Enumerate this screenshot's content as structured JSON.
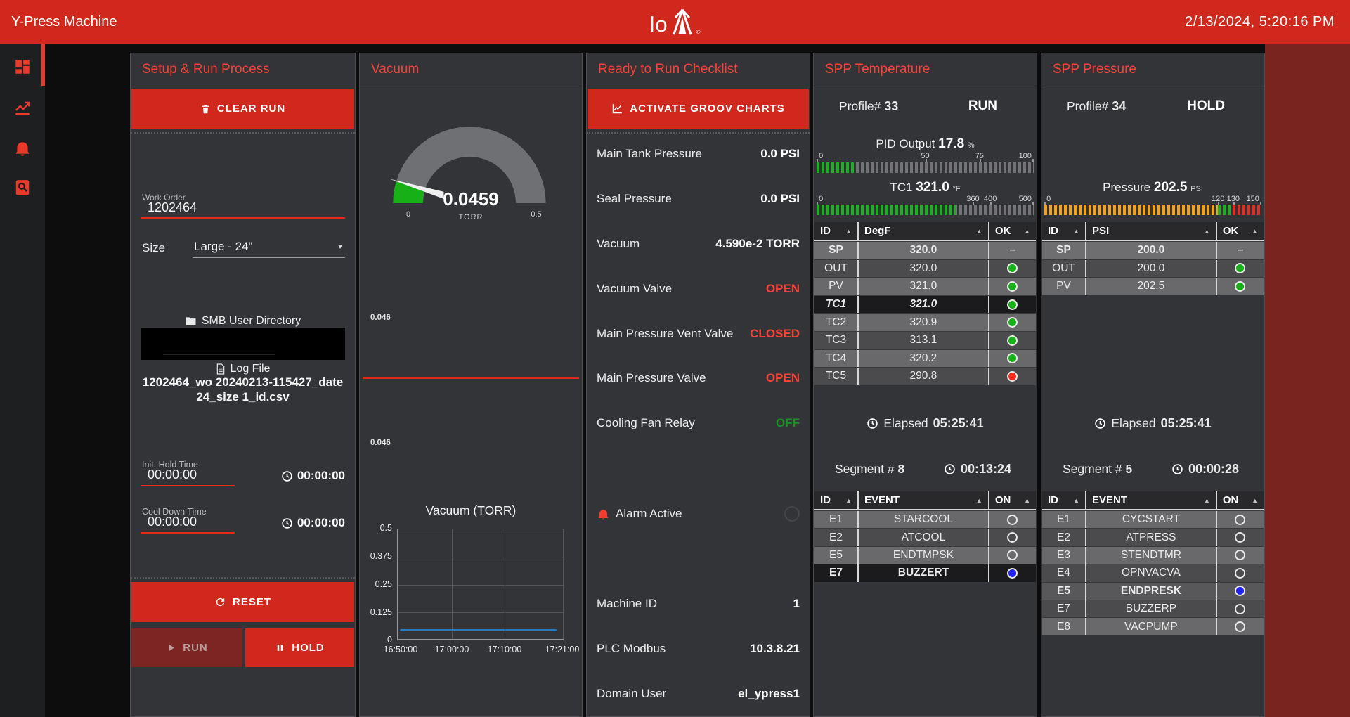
{
  "header": {
    "app_title": "Y-Press Machine",
    "logo_text": "lo",
    "logo_registered": "®",
    "datetime": "2/13/2024, 5:20:16 PM"
  },
  "sidebar": {
    "items": [
      "dashboard",
      "trends",
      "alarms",
      "log-search"
    ]
  },
  "setup": {
    "title": "Setup & Run Process",
    "clear_run_label": "CLEAR RUN",
    "work_order": {
      "label": "Work Order",
      "value": "1202464"
    },
    "size": {
      "label": "Size",
      "value": "Large - 24\""
    },
    "smb_label": "SMB User Directory",
    "log_file_label": "Log File",
    "log_file_name": "1202464_wo 20240213-115427_date 24_size 1_id.csv",
    "init_hold": {
      "label": "Init. Hold Time",
      "value": "00:00:00",
      "timer": "00:00:00"
    },
    "cool_down": {
      "label": "Cool Down Time",
      "value": "00:00:00",
      "timer": "00:00:00"
    },
    "reset_label": "RESET",
    "run_label": "RUN",
    "hold_label": "HOLD"
  },
  "vacuum": {
    "title": "Vacuum",
    "gauge": {
      "value": "0.0459",
      "unit": "TORR",
      "min": "0",
      "max": "0.5"
    },
    "spark1": "0.046",
    "spark2": "0.046",
    "chart": {
      "title": "Vacuum (TORR)",
      "type": "line",
      "y_ticks": [
        "0.5",
        "0.375",
        "0.25",
        "0.125",
        "0"
      ],
      "x_ticks": [
        "16:50:00",
        "17:00:00",
        "17:10:00",
        "17:21:00"
      ],
      "ylim": [
        0,
        0.5
      ],
      "series": [
        {
          "name": "Vacuum",
          "color": "#2b7bbf",
          "values": [
            0.046,
            0.046,
            0.046,
            0.046
          ]
        }
      ]
    }
  },
  "checklist": {
    "title": "Ready to Run Checklist",
    "activate_label": "ACTIVATE GROOV CHARTS",
    "rows": [
      {
        "label": "Main Tank Pressure",
        "value": "0.0 PSI",
        "color": "white"
      },
      {
        "label": "Seal Pressure",
        "value": "0.0 PSI",
        "color": "white"
      },
      {
        "label": "Vacuum",
        "value": "4.590e-2 TORR",
        "color": "white"
      },
      {
        "label": "Vacuum Valve",
        "value": "OPEN",
        "color": "red"
      },
      {
        "label": "Main Pressure Vent Valve",
        "value": "CLOSED",
        "color": "red"
      },
      {
        "label": "Main Pressure Valve",
        "value": "OPEN",
        "color": "red"
      },
      {
        "label": "Cooling Fan Relay",
        "value": "OFF",
        "color": "green"
      }
    ],
    "alarm_label": "Alarm Active",
    "info_rows": [
      {
        "label": "Machine ID",
        "value": "1"
      },
      {
        "label": "PLC Modbus",
        "value": "10.3.8.21"
      },
      {
        "label": "Domain User",
        "value": "el_ypress1"
      }
    ]
  },
  "spp_temp": {
    "title": "SPP Temperature",
    "profile_label": "Profile#",
    "profile_value": "33",
    "state": "RUN",
    "pid": {
      "label": "PID Output",
      "value": "17.8",
      "unit": "%",
      "scale": [
        "0",
        "50",
        "75",
        "100"
      ],
      "fill_pct": 17.8
    },
    "tc1": {
      "label": "TC1",
      "value": "321.0",
      "unit": "°F",
      "scale": [
        "0",
        "360",
        "400",
        "500"
      ],
      "fill_pct": 64.2
    },
    "table": {
      "headers": [
        "ID",
        "DegF",
        "OK"
      ],
      "rows": [
        {
          "id": "SP",
          "value": "320.0",
          "ok": "dash",
          "style": "sp"
        },
        {
          "id": "OUT",
          "value": "320.0",
          "ok": "green",
          "style": "dark"
        },
        {
          "id": "PV",
          "value": "321.0",
          "ok": "green",
          "style": "light"
        },
        {
          "id": "TC1",
          "value": "321.0",
          "ok": "green",
          "style": "hlitalic"
        },
        {
          "id": "TC2",
          "value": "320.9",
          "ok": "green",
          "style": "light"
        },
        {
          "id": "TC3",
          "value": "313.1",
          "ok": "green",
          "style": "dark"
        },
        {
          "id": "TC4",
          "value": "320.2",
          "ok": "green",
          "style": "light"
        },
        {
          "id": "TC5",
          "value": "290.8",
          "ok": "red",
          "style": "dark"
        }
      ]
    },
    "elapsed_label": "Elapsed",
    "elapsed_value": "05:25:41",
    "segment_label": "Segment #",
    "segment_value": "8",
    "segment_time": "00:13:24",
    "events": {
      "headers": [
        "ID",
        "EVENT",
        "ON"
      ],
      "rows": [
        {
          "id": "E1",
          "event": "STARCOOL",
          "on": "off",
          "style": "light"
        },
        {
          "id": "E2",
          "event": "ATCOOL",
          "on": "off",
          "style": "dark"
        },
        {
          "id": "E5",
          "event": "ENDTMPSK",
          "on": "off",
          "style": "light"
        },
        {
          "id": "E7",
          "event": "BUZZERT",
          "on": "blue",
          "style": "hl"
        }
      ]
    }
  },
  "spp_press": {
    "title": "SPP Pressure",
    "profile_label": "Profile#",
    "profile_value": "34",
    "state": "HOLD",
    "pressure": {
      "label": "Pressure",
      "value": "202.5",
      "unit": "PSI",
      "scale": [
        "0",
        "120",
        "130",
        "150"
      ]
    },
    "table": {
      "headers": [
        "ID",
        "PSI",
        "OK"
      ],
      "rows": [
        {
          "id": "SP",
          "value": "200.0",
          "ok": "dash",
          "style": "sp"
        },
        {
          "id": "OUT",
          "value": "200.0",
          "ok": "green",
          "style": "dark"
        },
        {
          "id": "PV",
          "value": "202.5",
          "ok": "green",
          "style": "light"
        }
      ]
    },
    "elapsed_label": "Elapsed",
    "elapsed_value": "05:25:41",
    "segment_label": "Segment #",
    "segment_value": "5",
    "segment_time": "00:00:28",
    "events": {
      "headers": [
        "ID",
        "EVENT",
        "ON"
      ],
      "rows": [
        {
          "id": "E1",
          "event": "CYCSTART",
          "on": "off",
          "style": "light"
        },
        {
          "id": "E2",
          "event": "ATPRESS",
          "on": "off",
          "style": "dark"
        },
        {
          "id": "E3",
          "event": "STENDTMR",
          "on": "off",
          "style": "light"
        },
        {
          "id": "E4",
          "event": "OPNVACVA",
          "on": "off",
          "style": "dark"
        },
        {
          "id": "E5",
          "event": "ENDPRESK",
          "on": "blue",
          "style": "hl2"
        },
        {
          "id": "E7",
          "event": "BUZZERP",
          "on": "off",
          "style": "dark"
        },
        {
          "id": "E8",
          "event": "VACPUMP",
          "on": "off",
          "style": "light"
        }
      ]
    }
  }
}
